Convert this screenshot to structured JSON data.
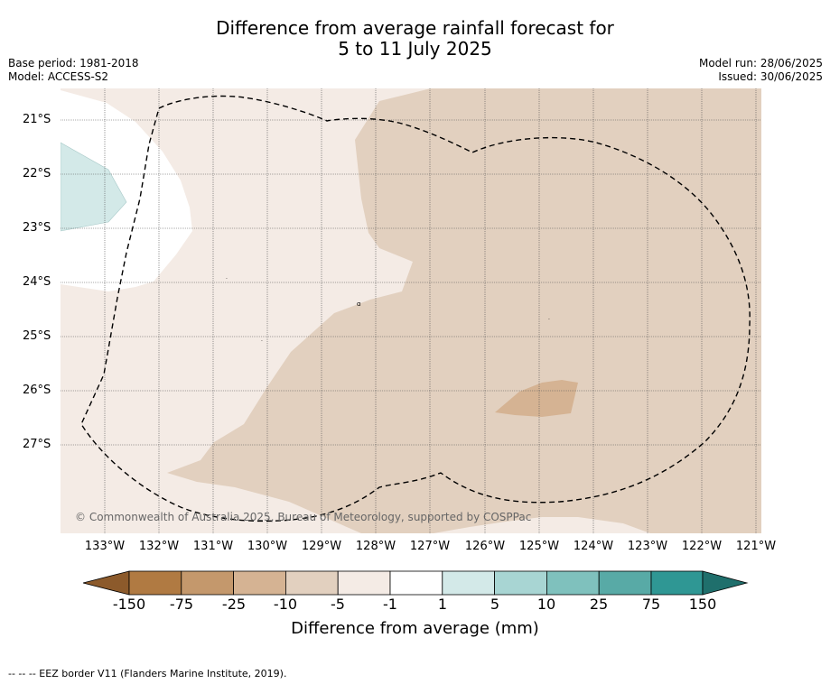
{
  "title": {
    "line1": "Difference from average rainfall forecast for",
    "line2": "5 to 11 July 2025"
  },
  "left_meta": {
    "base_period": "Base period: 1981-2018",
    "model": "Model: ACCESS-S2"
  },
  "right_meta": {
    "model_run": "Model run: 28/06/2025",
    "issued": "Issued: 30/06/2025"
  },
  "lat_labels": [
    "21°S",
    "22°S",
    "23°S",
    "24°S",
    "25°S",
    "26°S",
    "27°S"
  ],
  "lon_labels": [
    "133°W",
    "132°W",
    "131°W",
    "130°W",
    "129°W",
    "128°W",
    "127°W",
    "126°W",
    "125°W",
    "124°W",
    "123°W",
    "122°W",
    "121°W"
  ],
  "copyright": "© Commonwealth of Australia 2025, Bureau of Meteorology, supported by COSPPac",
  "colorbar": {
    "ticks": [
      "-150",
      "-75",
      "-25",
      "-10",
      "-5",
      "-1",
      "1",
      "5",
      "10",
      "25",
      "75",
      "150"
    ],
    "colors": [
      "#8c5a2b",
      "#b07a42",
      "#c4986c",
      "#d5b393",
      "#e2d0bf",
      "#f4ebe5",
      "#ffffff",
      "#d3e9e8",
      "#a8d5d3",
      "#7fc1bd",
      "#58aaa6",
      "#2f9794",
      "#1f6f6c"
    ],
    "label": "Difference from average (mm)"
  },
  "footnote": "--  --  -- EEZ border V11 (Flanders Marine Institute, 2019)."
}
